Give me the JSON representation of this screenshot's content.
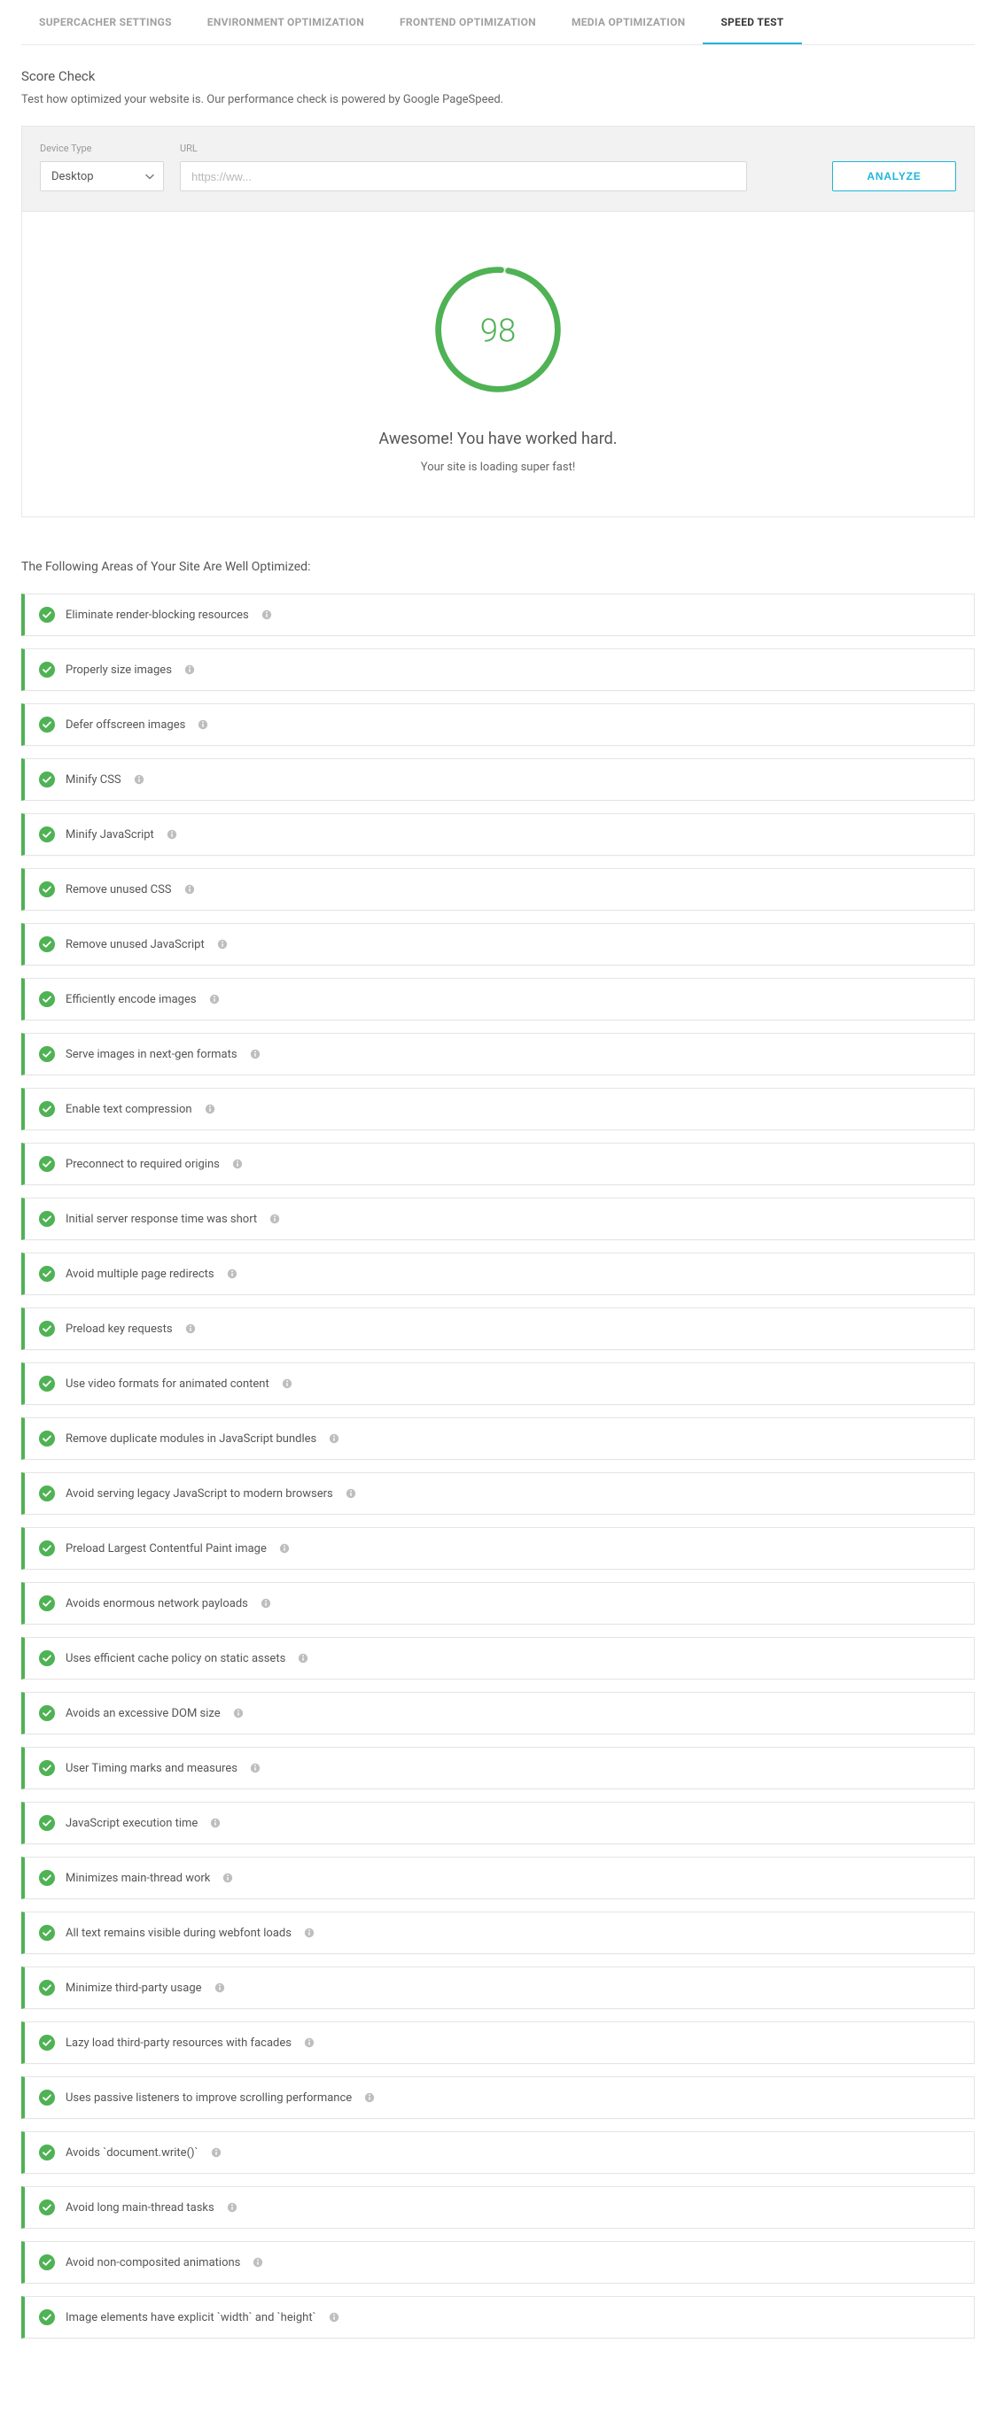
{
  "colors": {
    "accent_blue": "#1fb6db",
    "accent_green": "#4fb254",
    "text_primary": "#555555",
    "text_muted": "#9a9a9a",
    "border": "#e5e5e5",
    "panel_bg": "#f2f2f2"
  },
  "tabs": [
    {
      "id": "supercacher",
      "label": "SUPERCACHER SETTINGS",
      "active": false
    },
    {
      "id": "environment",
      "label": "ENVIRONMENT OPTIMIZATION",
      "active": false
    },
    {
      "id": "frontend",
      "label": "FRONTEND OPTIMIZATION",
      "active": false
    },
    {
      "id": "media",
      "label": "MEDIA OPTIMIZATION",
      "active": false
    },
    {
      "id": "speedtest",
      "label": "SPEED TEST",
      "active": true
    }
  ],
  "section": {
    "title": "Score Check",
    "subtitle": "Test how optimized your website is. Our performance check is powered by Google PageSpeed."
  },
  "form": {
    "device_label": "Device Type",
    "device_value": "Desktop",
    "url_label": "URL",
    "url_placeholder": "https://ww...",
    "analyze_label": "ANALYZE"
  },
  "score": {
    "value": "98",
    "percent": 98,
    "circle": {
      "stroke_color": "#4fb254",
      "track_color": "#e8f3e9",
      "stroke_width": 7,
      "radius": 70,
      "gap_deg": 20
    },
    "title": "Awesome! You have worked hard.",
    "subtitle": "Your site is loading super fast!"
  },
  "optimized": {
    "heading": "The Following Areas of Your Site Are Well Optimized:",
    "items": [
      "Eliminate render-blocking resources",
      "Properly size images",
      "Defer offscreen images",
      "Minify CSS",
      "Minify JavaScript",
      "Remove unused CSS",
      "Remove unused JavaScript",
      "Efficiently encode images",
      "Serve images in next-gen formats",
      "Enable text compression",
      "Preconnect to required origins",
      "Initial server response time was short",
      "Avoid multiple page redirects",
      "Preload key requests",
      "Use video formats for animated content",
      "Remove duplicate modules in JavaScript bundles",
      "Avoid serving legacy JavaScript to modern browsers",
      "Preload Largest Contentful Paint image",
      "Avoids enormous network payloads",
      "Uses efficient cache policy on static assets",
      "Avoids an excessive DOM size",
      "User Timing marks and measures",
      "JavaScript execution time",
      "Minimizes main-thread work",
      "All text remains visible during webfont loads",
      "Minimize third-party usage",
      "Lazy load third-party resources with facades",
      "Uses passive listeners to improve scrolling performance",
      "Avoids `document.write()`",
      "Avoid long main-thread tasks",
      "Avoid non-composited animations",
      "Image elements have explicit `width` and `height`"
    ]
  }
}
